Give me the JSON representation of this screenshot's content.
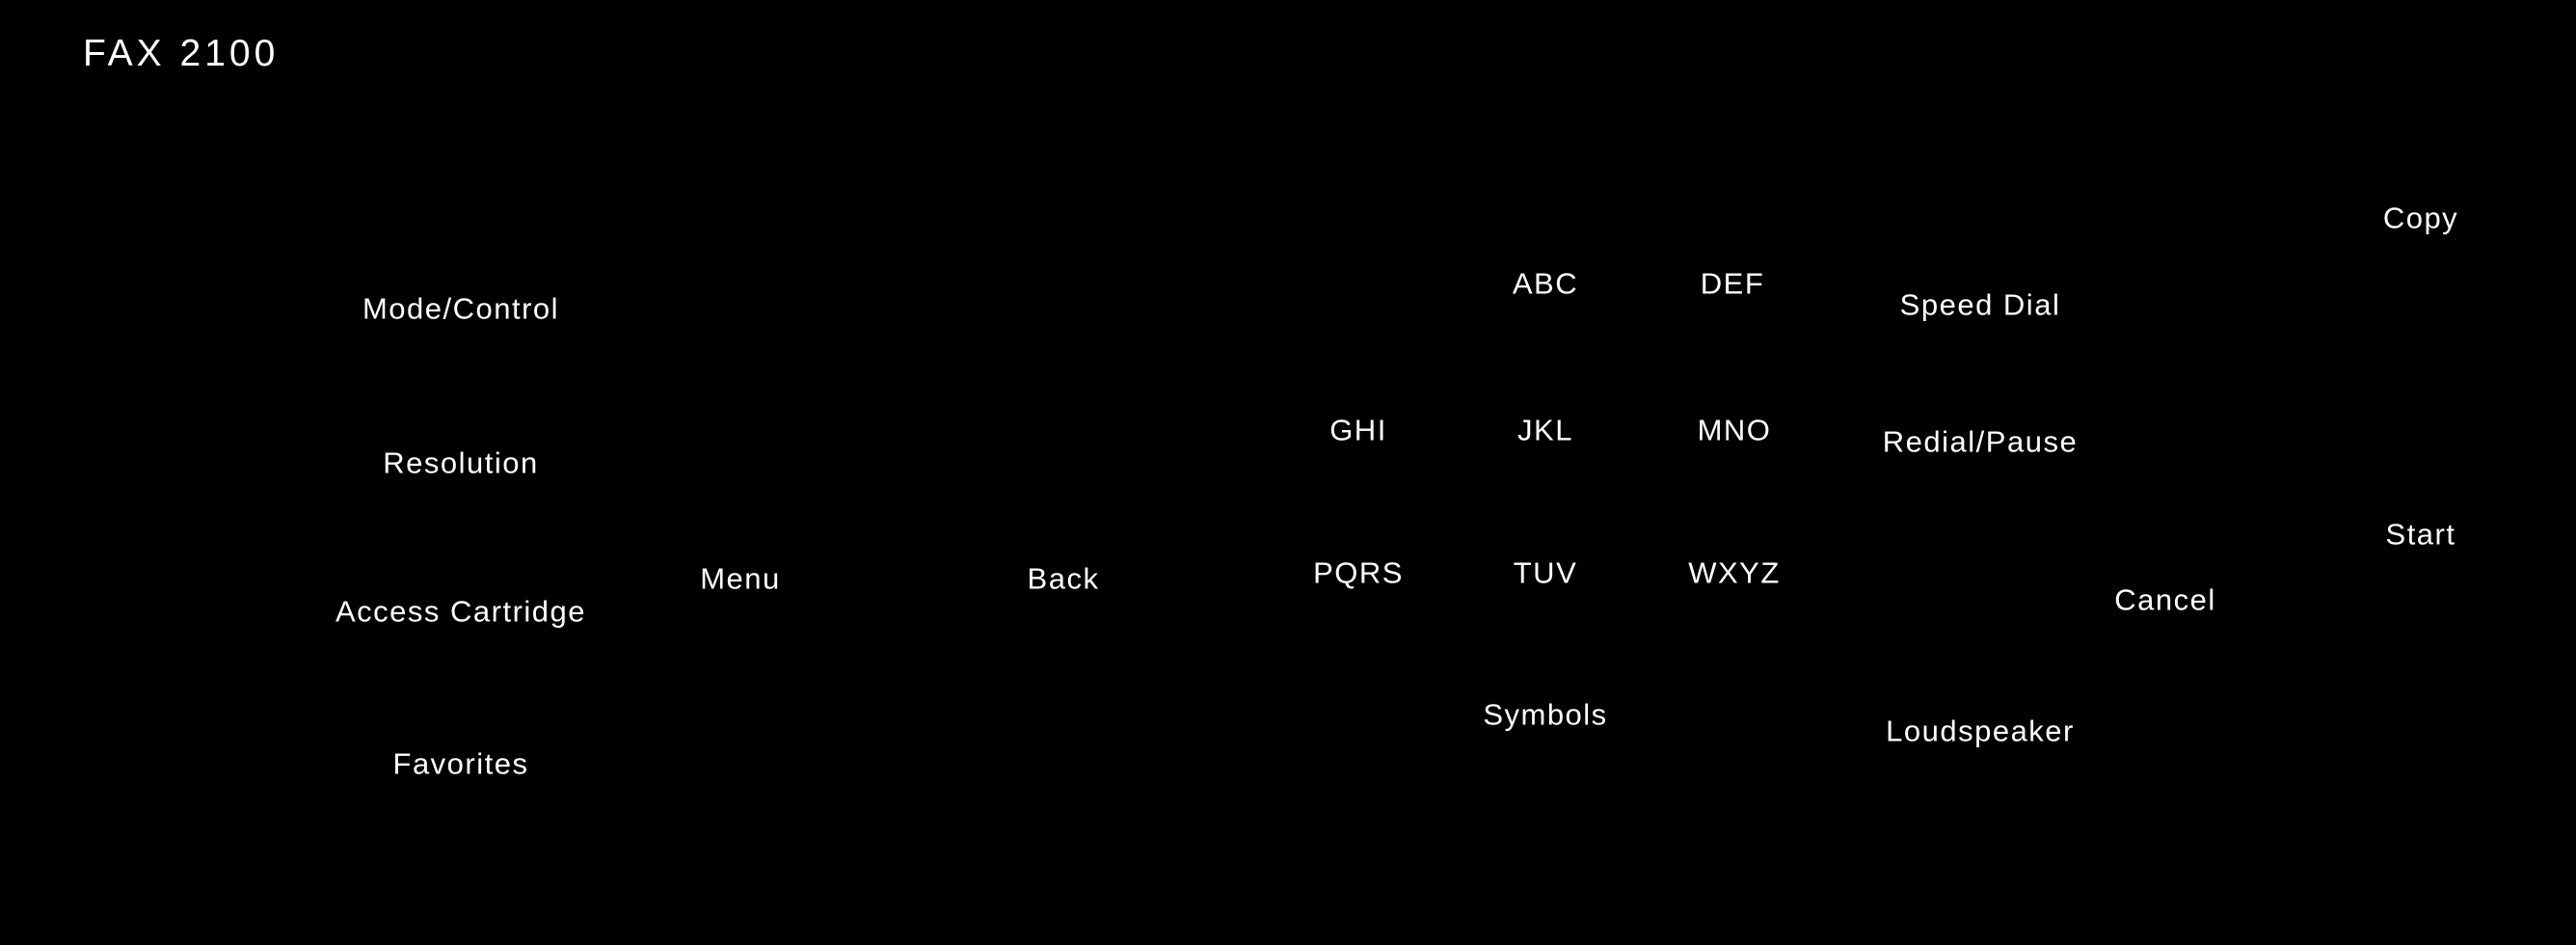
{
  "device": {
    "title": "FAX 2100"
  },
  "left_column": {
    "mode_control": "Mode/Control",
    "resolution": "Resolution",
    "access_cartridge": "Access Cartridge",
    "favorites": "Favorites"
  },
  "nav": {
    "menu": "Menu",
    "back": "Back"
  },
  "keypad": {
    "abc": "ABC",
    "def": "DEF",
    "ghi": "GHI",
    "jkl": "JKL",
    "mno": "MNO",
    "pqrs": "PQRS",
    "tuv": "TUV",
    "wxyz": "WXYZ",
    "symbols": "Symbols"
  },
  "functions": {
    "speed_dial": "Speed Dial",
    "redial_pause": "Redial/Pause",
    "loudspeaker": "Loudspeaker",
    "cancel": "Cancel"
  },
  "actions": {
    "copy": "Copy",
    "start": "Start"
  }
}
